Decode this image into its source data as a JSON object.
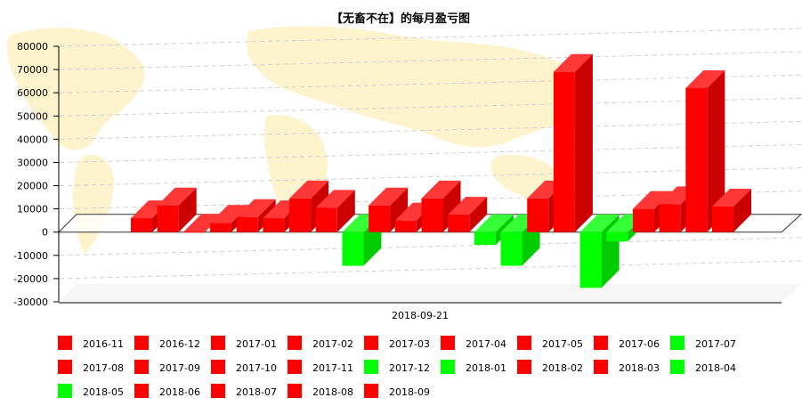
{
  "chart_data": {
    "type": "bar",
    "title": "【无畜不在】的每月盈亏图",
    "xlabel": "2018-09-21",
    "ylabel": "",
    "ylim": [
      -30000,
      80000
    ],
    "yticks": [
      -30000,
      -20000,
      -10000,
      0,
      10000,
      20000,
      30000,
      40000,
      50000,
      60000,
      70000,
      80000
    ],
    "grid": true,
    "legend_position": "bottom",
    "colors": {
      "positive": "#ff0000",
      "negative": "#00ff00",
      "grid": "#d0d0d0"
    },
    "series": [
      {
        "name": "2016-11",
        "value": 6000
      },
      {
        "name": "2016-12",
        "value": 11500
      },
      {
        "name": "2017-01",
        "value": 200
      },
      {
        "name": "2017-02",
        "value": 4000
      },
      {
        "name": "2017-03",
        "value": 6500
      },
      {
        "name": "2017-04",
        "value": 6000
      },
      {
        "name": "2017-05",
        "value": 14500
      },
      {
        "name": "2017-06",
        "value": 10500
      },
      {
        "name": "2017-07",
        "value": -14500
      },
      {
        "name": "2017-08",
        "value": 11500
      },
      {
        "name": "2017-09",
        "value": 5000
      },
      {
        "name": "2017-10",
        "value": 14500
      },
      {
        "name": "2017-11",
        "value": 7500
      },
      {
        "name": "2017-12",
        "value": -5500
      },
      {
        "name": "2018-01",
        "value": -14500
      },
      {
        "name": "2018-02",
        "value": 14500
      },
      {
        "name": "2018-03",
        "value": 69000
      },
      {
        "name": "2018-04",
        "value": -24000
      },
      {
        "name": "2018-05",
        "value": -4000
      },
      {
        "name": "2018-06",
        "value": 10000
      },
      {
        "name": "2018-07",
        "value": 12000
      },
      {
        "name": "2018-08",
        "value": 62000
      },
      {
        "name": "2018-09",
        "value": 11000
      }
    ]
  }
}
